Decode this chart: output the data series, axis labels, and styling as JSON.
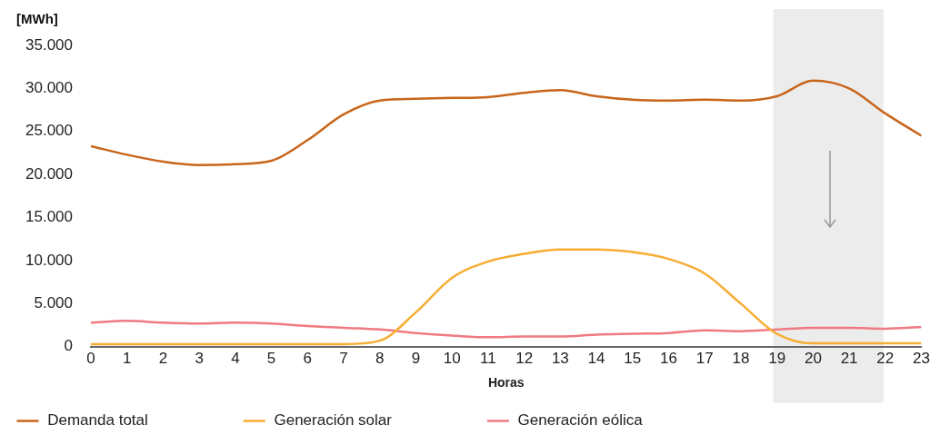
{
  "chart_data": {
    "type": "line",
    "ylabel": "[MWh]",
    "xlabel": "Horas",
    "x": [
      0,
      1,
      2,
      3,
      4,
      5,
      6,
      7,
      8,
      9,
      10,
      11,
      12,
      13,
      14,
      15,
      16,
      17,
      18,
      19,
      20,
      21,
      22,
      23
    ],
    "series": [
      {
        "name": "Demanda total",
        "color": "#c8651b",
        "values": [
          23300,
          22300,
          21500,
          21100,
          21200,
          21600,
          24000,
          27000,
          28600,
          28800,
          28900,
          29000,
          29500,
          29800,
          29100,
          28700,
          28600,
          28700,
          28600,
          29100,
          30900,
          30000,
          27100,
          24500
        ]
      },
      {
        "name": "Generación solar",
        "color": "#f7ad33",
        "values": [
          300,
          300,
          300,
          300,
          300,
          300,
          300,
          300,
          700,
          4000,
          8000,
          9900,
          10800,
          11300,
          11300,
          11000,
          10200,
          8500,
          5000,
          1500,
          400,
          400,
          400,
          400
        ]
      },
      {
        "name": "Generación eólica",
        "color": "#f07a80",
        "values": [
          2800,
          3000,
          2800,
          2700,
          2800,
          2700,
          2400,
          2200,
          2000,
          1600,
          1300,
          1100,
          1200,
          1200,
          1400,
          1500,
          1600,
          1900,
          1800,
          2000,
          2200,
          2200,
          2100,
          2300
        ]
      }
    ],
    "xlim": [
      0,
      23
    ],
    "xticks": [
      0,
      1,
      2,
      3,
      4,
      5,
      6,
      7,
      8,
      9,
      10,
      11,
      12,
      13,
      14,
      15,
      16,
      17,
      18,
      19,
      20,
      21,
      22,
      23
    ],
    "ylim": [
      0,
      35000
    ],
    "yticks": [
      {
        "value": 0,
        "label": "0"
      },
      {
        "value": 5000,
        "label": "5.000"
      },
      {
        "value": 10000,
        "label": "10.000"
      },
      {
        "value": 15000,
        "label": "15.000"
      },
      {
        "value": 20000,
        "label": "20.000"
      },
      {
        "value": 25000,
        "label": "25.000"
      },
      {
        "value": 30000,
        "label": "30.000"
      },
      {
        "value": 35000,
        "label": "35.000"
      }
    ],
    "bands": [
      {
        "axis": "x",
        "from": 18.9,
        "to": 21.95,
        "color": "#ececec"
      }
    ],
    "grid": false,
    "legend": "bottom left",
    "marker": "none",
    "line_style": "solid"
  }
}
